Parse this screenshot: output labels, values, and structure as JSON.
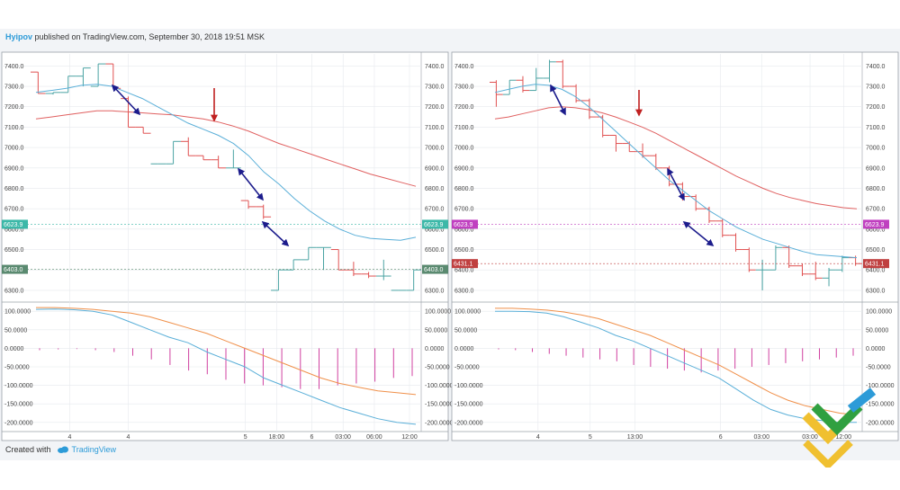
{
  "header": {
    "author": "Hyipov",
    "text": " published on TradingView.com, September 30, 2018 19:51 MSK"
  },
  "footer": {
    "created_with": "Created with",
    "brand": "TradingView"
  },
  "colors": {
    "up_bar": "#4aa3a3",
    "down_bar": "#e05050",
    "ma_fast": "#5aafd8",
    "ma_slow": "#e06060",
    "osc_main": "#5aafd8",
    "osc_signal": "#f0904a",
    "histogram": "#d040a0",
    "arrow_blue": "#1c1c8c",
    "arrow_red": "#c02020",
    "grid": "#e6e9ee"
  },
  "chart_data": [
    {
      "type": "line",
      "panel": "left",
      "price_axis": {
        "ticks": [
          "7400.0",
          "7300.0",
          "7200.0",
          "7100.0",
          "7000.0",
          "6900.0",
          "6800.0",
          "6700.0",
          "6600.0",
          "6500.0",
          "6400.0",
          "6300.0"
        ],
        "range": [
          6260,
          7450
        ]
      },
      "price_markers": [
        {
          "label": "6623.9",
          "value": 6623.9,
          "color": "#3cb8a8"
        },
        {
          "label": "6403.0",
          "value": 6403.0,
          "color": "#5a8a70"
        }
      ],
      "osc_axis": {
        "ticks": [
          "100.0000",
          "50.0000",
          "0.0000",
          "-50.0000",
          "-100.0000",
          "-150.0000",
          "-200.0000"
        ],
        "range": [
          -215,
          115
        ]
      },
      "x_labels": [
        {
          "label": "4",
          "pos": 0.1
        },
        {
          "label": "4",
          "pos": 0.25
        },
        {
          "label": "5",
          "pos": 0.55
        },
        {
          "label": "18:00",
          "pos": 0.63
        },
        {
          "label": "6",
          "pos": 0.72
        },
        {
          "label": "03:00",
          "pos": 0.8
        },
        {
          "label": "06:00",
          "pos": 0.88
        },
        {
          "label": "12:00",
          "pos": 0.97
        }
      ],
      "bars": [
        {
          "open": 7370,
          "close": 7265,
          "high": 7370,
          "low": 7265
        },
        {
          "open": 7265,
          "close": 7270,
          "high": 7270,
          "low": 7260
        },
        {
          "open": 7270,
          "close": 7350,
          "high": 7350,
          "low": 7270
        },
        {
          "open": 7350,
          "close": 7390,
          "high": 7390,
          "low": 7300
        },
        {
          "open": 7300,
          "close": 7410,
          "high": 7410,
          "low": 7300
        },
        {
          "open": 7410,
          "close": 7290,
          "high": 7410,
          "low": 7290
        },
        {
          "open": 7240,
          "close": 7100,
          "high": 7250,
          "low": 7100
        },
        {
          "open": 7100,
          "close": 7070,
          "high": 7100,
          "low": 7070
        },
        {
          "open": 6920,
          "close": 6920,
          "high": 6920,
          "low": 6920
        },
        {
          "open": 6920,
          "close": 7030,
          "high": 7030,
          "low": 6920
        },
        {
          "open": 7030,
          "close": 6960,
          "high": 7050,
          "low": 6960
        },
        {
          "open": 6960,
          "close": 6940,
          "high": 6960,
          "low": 6940
        },
        {
          "open": 6940,
          "close": 6900,
          "high": 6960,
          "low": 6900
        },
        {
          "open": 6900,
          "close": 6900,
          "high": 6990,
          "low": 6900
        },
        {
          "open": 6740,
          "close": 6710,
          "high": 6740,
          "low": 6700
        },
        {
          "open": 6710,
          "close": 6660,
          "high": 6720,
          "low": 6650
        },
        {
          "open": 6300,
          "close": 6400,
          "high": 6400,
          "low": 6300
        },
        {
          "open": 6400,
          "close": 6450,
          "high": 6450,
          "low": 6400
        },
        {
          "open": 6450,
          "close": 6510,
          "high": 6510,
          "low": 6450
        },
        {
          "open": 6510,
          "close": 6510,
          "high": 6510,
          "low": 6400
        },
        {
          "open": 6500,
          "close": 6400,
          "high": 6500,
          "low": 6400
        },
        {
          "open": 6400,
          "close": 6380,
          "high": 6440,
          "low": 6370
        },
        {
          "open": 6380,
          "close": 6370,
          "high": 6390,
          "low": 6360
        },
        {
          "open": 6370,
          "close": 6370,
          "high": 6450,
          "low": 6350
        },
        {
          "open": 6300,
          "close": 6300,
          "high": 6300,
          "low": 6300
        },
        {
          "open": 6300,
          "close": 6400,
          "high": 6400,
          "low": 6300
        }
      ],
      "ma_fast": [
        7270,
        7280,
        7290,
        7305,
        7310,
        7300,
        7270,
        7240,
        7200,
        7160,
        7120,
        7090,
        7060,
        7020,
        6960,
        6880,
        6820,
        6750,
        6690,
        6640,
        6600,
        6570,
        6555,
        6550,
        6545,
        6560
      ],
      "ma_slow": [
        7140,
        7150,
        7160,
        7170,
        7180,
        7180,
        7175,
        7170,
        7165,
        7160,
        7150,
        7140,
        7125,
        7105,
        7080,
        7050,
        7020,
        6995,
        6970,
        6945,
        6920,
        6895,
        6870,
        6850,
        6830,
        6810
      ],
      "osc_main": [
        105,
        106,
        104,
        100,
        90,
        70,
        50,
        30,
        15,
        -10,
        -30,
        -50,
        -80,
        -100,
        -120,
        -140,
        -160,
        -175,
        -190,
        -200,
        -205
      ],
      "osc_signal": [
        110,
        110,
        108,
        105,
        100,
        95,
        85,
        70,
        55,
        40,
        20,
        0,
        -20,
        -40,
        -60,
        -80,
        -95,
        -105,
        -115,
        -120,
        -125
      ],
      "histogram": [
        -5,
        -3,
        -2,
        -5,
        -10,
        -20,
        -30,
        -45,
        -60,
        -70,
        -85,
        -95,
        -100,
        -105,
        -110,
        -110,
        -100,
        -95,
        -90,
        -80,
        -75
      ]
    },
    {
      "type": "line",
      "panel": "right",
      "price_axis": {
        "ticks": [
          "7400.0",
          "7300.0",
          "7200.0",
          "7100.0",
          "7000.0",
          "6900.0",
          "6800.0",
          "6700.0",
          "6600.0",
          "6500.0",
          "6400.0",
          "6300.0"
        ],
        "range": [
          6260,
          7450
        ]
      },
      "price_markers": [
        {
          "label": "6623.9",
          "value": 6623.9,
          "color": "#c040c0"
        },
        {
          "label": "6431.1",
          "value": 6431.1,
          "color": "#c04040"
        }
      ],
      "osc_axis": {
        "ticks": [
          "100.0000",
          "50.0000",
          "0.0000",
          "-50.0000",
          "-100.0000",
          "-150.0000",
          "-200.0000"
        ],
        "range": [
          -215,
          115
        ]
      },
      "x_labels": [
        {
          "label": "4",
          "pos": 0.13
        },
        {
          "label": "5",
          "pos": 0.27
        },
        {
          "label": "13:00",
          "pos": 0.39
        },
        {
          "label": "6",
          "pos": 0.62
        },
        {
          "label": "03:00",
          "pos": 0.73
        },
        {
          "label": "03:00",
          "pos": 0.86
        },
        {
          "label": "12:00",
          "pos": 0.95
        }
      ],
      "bars": [
        {
          "open": 7320,
          "close": 7260,
          "high": 7330,
          "low": 7200
        },
        {
          "open": 7260,
          "close": 7330,
          "high": 7330,
          "low": 7260
        },
        {
          "open": 7330,
          "close": 7280,
          "high": 7350,
          "low": 7270
        },
        {
          "open": 7280,
          "close": 7340,
          "high": 7390,
          "low": 7280
        },
        {
          "open": 7340,
          "close": 7420,
          "high": 7430,
          "low": 7320
        },
        {
          "open": 7420,
          "close": 7300,
          "high": 7430,
          "low": 7290
        },
        {
          "open": 7300,
          "close": 7230,
          "high": 7310,
          "low": 7220
        },
        {
          "open": 7230,
          "close": 7150,
          "high": 7240,
          "low": 7140
        },
        {
          "open": 7150,
          "close": 7060,
          "high": 7160,
          "low": 7050
        },
        {
          "open": 7060,
          "close": 7020,
          "high": 7060,
          "low": 6980
        },
        {
          "open": 7020,
          "close": 6980,
          "high": 7030,
          "low": 6980
        },
        {
          "open": 6980,
          "close": 6960,
          "high": 7020,
          "low": 6950
        },
        {
          "open": 6960,
          "close": 6900,
          "high": 6970,
          "low": 6890
        },
        {
          "open": 6900,
          "close": 6820,
          "high": 6910,
          "low": 6810
        },
        {
          "open": 6820,
          "close": 6760,
          "high": 6830,
          "low": 6740
        },
        {
          "open": 6760,
          "close": 6700,
          "high": 6770,
          "low": 6690
        },
        {
          "open": 6700,
          "close": 6640,
          "high": 6710,
          "low": 6630
        },
        {
          "open": 6640,
          "close": 6570,
          "high": 6650,
          "low": 6560
        },
        {
          "open": 6570,
          "close": 6500,
          "high": 6580,
          "low": 6490
        },
        {
          "open": 6500,
          "close": 6400,
          "high": 6510,
          "low": 6390
        },
        {
          "open": 6400,
          "close": 6400,
          "high": 6450,
          "low": 6300
        },
        {
          "open": 6400,
          "close": 6510,
          "high": 6520,
          "low": 6400
        },
        {
          "open": 6510,
          "close": 6420,
          "high": 6520,
          "low": 6410
        },
        {
          "open": 6420,
          "close": 6380,
          "high": 6430,
          "low": 6370
        },
        {
          "open": 6380,
          "close": 6360,
          "high": 6440,
          "low": 6350
        },
        {
          "open": 6360,
          "close": 6400,
          "high": 6410,
          "low": 6320
        },
        {
          "open": 6400,
          "close": 6460,
          "high": 6470,
          "low": 6390
        },
        {
          "open": 6460,
          "close": 6431,
          "high": 6470,
          "low": 6420
        }
      ],
      "ma_fast": [
        7270,
        7285,
        7300,
        7310,
        7305,
        7285,
        7250,
        7200,
        7140,
        7080,
        7020,
        6960,
        6900,
        6840,
        6790,
        6740,
        6690,
        6650,
        6610,
        6580,
        6550,
        6530,
        6510,
        6490,
        6475,
        6470,
        6465,
        6460
      ],
      "ma_slow": [
        7140,
        7150,
        7165,
        7180,
        7195,
        7200,
        7195,
        7185,
        7170,
        7150,
        7125,
        7100,
        7070,
        7035,
        7000,
        6965,
        6930,
        6895,
        6860,
        6830,
        6800,
        6775,
        6755,
        6740,
        6725,
        6715,
        6705,
        6700
      ],
      "osc_main": [
        100,
        100,
        99,
        95,
        85,
        70,
        55,
        35,
        20,
        0,
        -20,
        -40,
        -60,
        -80,
        -110,
        -140,
        -165,
        -180,
        -190,
        -195,
        -200,
        -200
      ],
      "osc_signal": [
        108,
        108,
        106,
        103,
        98,
        90,
        80,
        65,
        50,
        35,
        15,
        -5,
        -25,
        -45,
        -70,
        -95,
        -120,
        -140,
        -155,
        -165,
        -175,
        -180
      ],
      "histogram": [
        -3,
        -5,
        -10,
        -15,
        -20,
        -25,
        -30,
        -35,
        -45,
        -50,
        -55,
        -60,
        -65,
        -60,
        -55,
        -50,
        -45,
        -40,
        -35,
        -30,
        -25,
        -20
      ]
    }
  ]
}
